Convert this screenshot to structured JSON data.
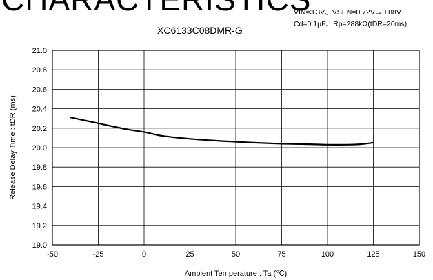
{
  "heading": "CHARACTERISTICS",
  "conditions": [
    "VIN=3.3V、VSEN=0.72V→0.88V",
    "Cd=0.1μF、Rp=288kΩ(tDR=20ms)"
  ],
  "chart_data": {
    "type": "line",
    "title": "XC6133C08DMR-G",
    "xlabel": "Ambient Temperature : Ta (℃)",
    "ylabel": "Release Delay Time : tDR (ms)",
    "xlim": [
      -50,
      150
    ],
    "ylim": [
      19.0,
      21.0
    ],
    "xticks": [
      "-50",
      "-25",
      "0",
      "25",
      "50",
      "75",
      "100",
      "125",
      "150"
    ],
    "yticks": [
      "19.0",
      "19.2",
      "19.4",
      "19.6",
      "19.8",
      "20.0",
      "20.2",
      "20.4",
      "20.6",
      "20.8",
      "21.0"
    ],
    "grid": true,
    "series": [
      {
        "x": [
          -40,
          -25,
          -10,
          0,
          10,
          25,
          40,
          50,
          60,
          75,
          90,
          100,
          110,
          118,
          125
        ],
        "y": [
          20.31,
          20.25,
          20.19,
          20.16,
          20.12,
          20.09,
          20.07,
          20.06,
          20.05,
          20.04,
          20.035,
          20.03,
          20.03,
          20.035,
          20.05
        ]
      }
    ]
  }
}
